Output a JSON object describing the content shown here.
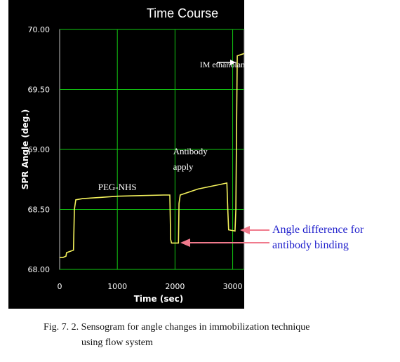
{
  "chart_data": {
    "type": "line",
    "title": "Time Course",
    "xlabel": "Time (sec)",
    "ylabel": "SPR Angle (deg.)",
    "xlim": [
      0,
      3200
    ],
    "ylim": [
      68.0,
      70.0
    ],
    "x_ticks": [
      "0",
      "1000",
      "2000",
      "3000"
    ],
    "y_ticks": [
      "68.00",
      "68.50",
      "69.00",
      "69.50",
      "70.00"
    ],
    "grid": true,
    "series": [
      {
        "color": "#f4f25c",
        "points": [
          [
            0,
            68.1
          ],
          [
            60,
            68.1
          ],
          [
            110,
            68.11
          ],
          [
            120,
            68.14
          ],
          [
            240,
            68.16
          ],
          [
            255,
            68.5
          ],
          [
            280,
            68.58
          ],
          [
            400,
            68.59
          ],
          [
            700,
            68.6
          ],
          [
            1000,
            68.61
          ],
          [
            1400,
            68.615
          ],
          [
            1800,
            68.62
          ],
          [
            1910,
            68.62
          ],
          [
            1925,
            68.25
          ],
          [
            1940,
            68.22
          ],
          [
            2060,
            68.22
          ],
          [
            2070,
            68.55
          ],
          [
            2090,
            68.62
          ],
          [
            2400,
            68.67
          ],
          [
            2800,
            68.71
          ],
          [
            2900,
            68.72
          ],
          [
            2915,
            68.5
          ],
          [
            2930,
            68.33
          ],
          [
            3040,
            68.32
          ],
          [
            3055,
            68.5
          ],
          [
            3070,
            69.3
          ],
          [
            3080,
            69.78
          ],
          [
            3200,
            69.8
          ]
        ]
      }
    ],
    "annotations": [
      {
        "text": "PEG-NHS",
        "x": 1000,
        "y": 68.66
      },
      {
        "text_lines": [
          "Antibody",
          "apply"
        ],
        "x": 2320,
        "y": 68.96
      },
      {
        "text": "IM ethanolamine",
        "x": 2580,
        "y": 69.72
      }
    ],
    "colors": {
      "plot_bg": "#000000",
      "grid": "#12c812",
      "line": "#f4f25c",
      "axis_text": "#ffffff",
      "arrow": "#f07a8c",
      "callout_text": "#1f1fcc"
    }
  },
  "callout": {
    "line1": "Angle difference for",
    "line2": "antibody binding"
  },
  "caption": {
    "line1": "Fig. 7. 2. Sensogram for angle changes in immobilization technique",
    "line2": "using flow system"
  }
}
